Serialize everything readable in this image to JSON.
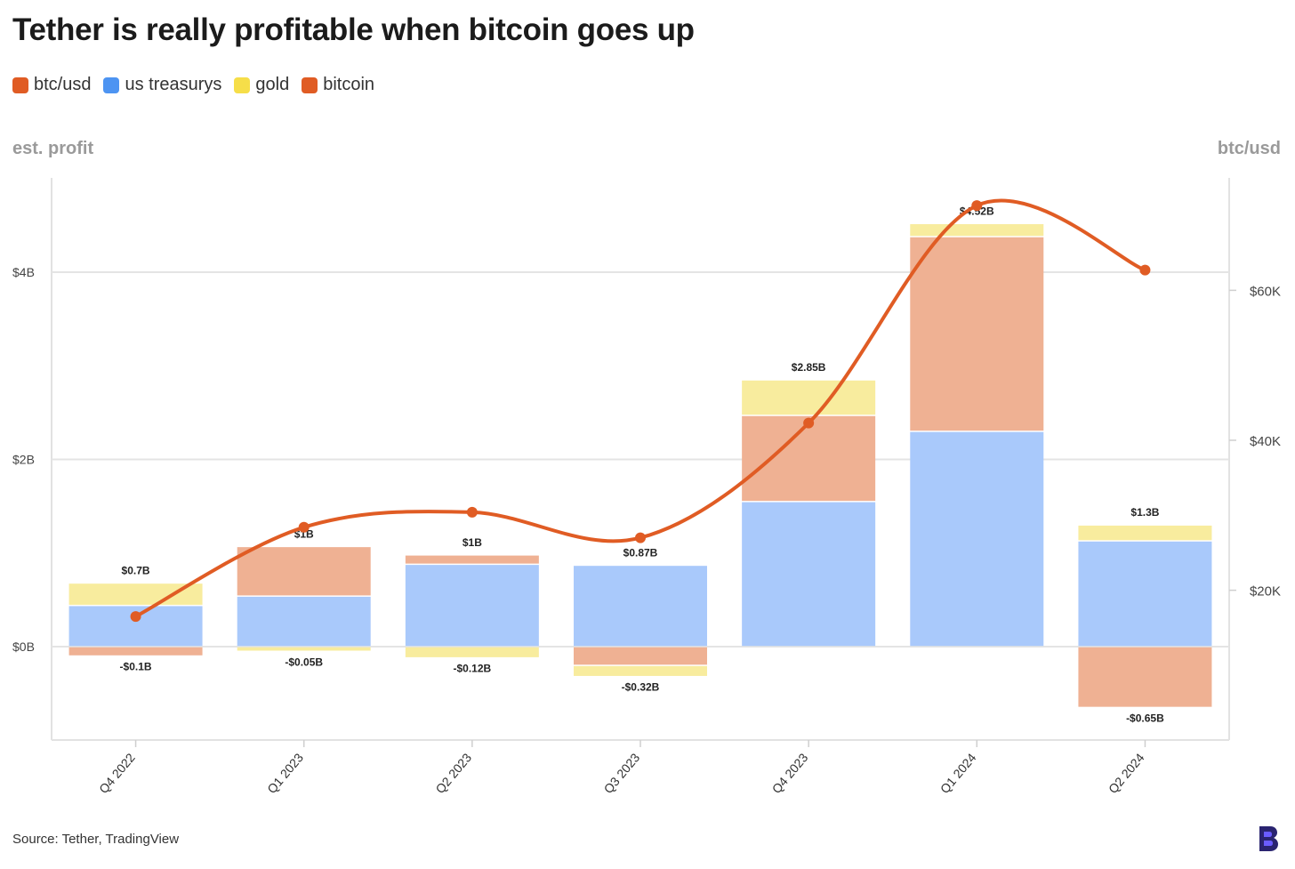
{
  "title": "Tether is really profitable when bitcoin goes up",
  "legend": [
    {
      "label": "btc/usd",
      "color": "#e05c24",
      "icon": "legend-swatch"
    },
    {
      "label": "us treasurys",
      "color": "#4d94f2",
      "icon": "legend-swatch"
    },
    {
      "label": "gold",
      "color": "#f6de49",
      "icon": "legend-swatch"
    },
    {
      "label": "bitcoin",
      "color": "#e05c24",
      "icon": "legend-swatch"
    }
  ],
  "axis_left_title": "est. profit",
  "axis_right_title": "btc/usd",
  "source": "Source: Tether, TradingView",
  "brand_icon": "logo-icon",
  "chart_data": {
    "type": "bar",
    "stacked": true,
    "categories": [
      "Q4 2022",
      "Q1 2023",
      "Q2 2023",
      "Q3 2023",
      "Q4 2023",
      "Q1 2024",
      "Q2 2024"
    ],
    "series": [
      {
        "name": "us treasurys",
        "color": "#a9c9fb",
        "values": [
          0.44,
          0.54,
          0.88,
          0.87,
          1.55,
          2.3,
          1.13
        ]
      },
      {
        "name": "bitcoin",
        "color": "#efb193",
        "values": [
          -0.1,
          0.53,
          0.1,
          -0.2,
          0.92,
          2.08,
          -0.65
        ]
      },
      {
        "name": "gold",
        "color": "#f8ec9e",
        "values": [
          0.24,
          -0.05,
          -0.12,
          -0.12,
          0.38,
          0.14,
          0.17
        ]
      }
    ],
    "totals_positive": [
      "$0.7B",
      "$1B",
      "$1B",
      "$0.87B",
      "$2.85B",
      "$4.52B",
      "$1.3B"
    ],
    "totals_negative": [
      "-$0.1B",
      "-$0.05B",
      "-$0.12B",
      "-$0.32B",
      "",
      "",
      "-$0.65B"
    ],
    "line": {
      "name": "btc/usd",
      "color": "#e05c24",
      "values": [
        16500,
        28400,
        30400,
        27000,
        42300,
        71300,
        62700
      ]
    },
    "left_axis": {
      "ticks": [
        0,
        2,
        4
      ],
      "tick_labels": [
        "$0B",
        "$2B",
        "$4B"
      ],
      "ylim": [
        -1,
        5
      ]
    },
    "right_axis": {
      "ticks": [
        20000,
        40000,
        60000
      ],
      "tick_labels": [
        "$20K",
        "$40K",
        "$60K"
      ],
      "ylim": [
        0,
        75000
      ]
    },
    "grid": true
  }
}
